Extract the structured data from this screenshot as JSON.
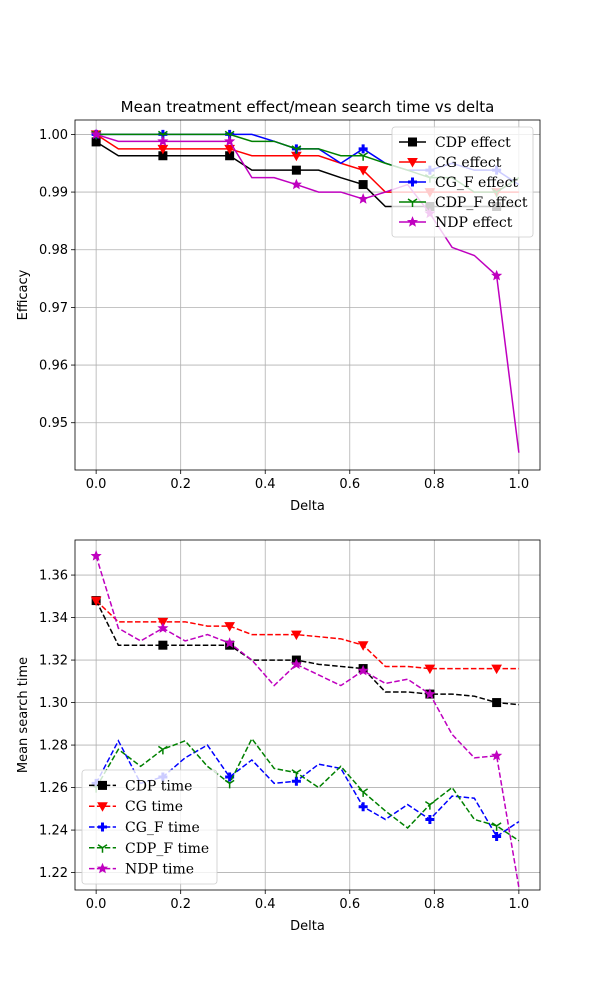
{
  "chart_data": [
    {
      "type": "line",
      "title": "Mean treatment effect/mean search time vs delta",
      "xlabel": "Delta",
      "ylabel": "Efficacy",
      "xlim": [
        -0.05,
        1.05
      ],
      "ylim": [
        0.9418,
        1.0025
      ],
      "xticks": [
        "0.0",
        "0.2",
        "0.4",
        "0.6",
        "0.8",
        "1.0"
      ],
      "yticks": [
        "0.95",
        "0.96",
        "0.97",
        "0.98",
        "0.99",
        "1.00"
      ],
      "grid": true,
      "legend_position": "top-right",
      "x": [
        0.0,
        0.0526,
        0.1053,
        0.1579,
        0.2105,
        0.2632,
        0.3158,
        0.3684,
        0.4211,
        0.4737,
        0.5263,
        0.5789,
        0.6316,
        0.6842,
        0.7368,
        0.7895,
        0.8421,
        0.8947,
        0.9474,
        1.0
      ],
      "series": [
        {
          "name": "CDP effect",
          "color": "#000000",
          "marker": "square",
          "dash": "solid",
          "marker_every": 3,
          "values": [
            0.9987,
            0.9963,
            0.9963,
            0.9963,
            0.9963,
            0.9963,
            0.9963,
            0.9938,
            0.9938,
            0.9938,
            0.9938,
            0.9925,
            0.9913,
            0.9875,
            0.9875,
            0.9875,
            0.9875,
            0.9875,
            0.9875,
            0.9875
          ]
        },
        {
          "name": "CG effect",
          "color": "#ff0000",
          "marker": "triangle-down",
          "dash": "solid",
          "marker_every": 3,
          "values": [
            1.0,
            0.9975,
            0.9975,
            0.9975,
            0.9975,
            0.9975,
            0.9975,
            0.9963,
            0.9963,
            0.9963,
            0.9963,
            0.995,
            0.9938,
            0.99,
            0.99,
            0.99,
            0.99,
            0.99,
            0.99,
            0.99
          ]
        },
        {
          "name": "CG_F effect",
          "color": "#0000ff",
          "marker": "plus",
          "dash": "solid",
          "marker_every": 3,
          "values": [
            1.0,
            1.0,
            1.0,
            1.0,
            1.0,
            1.0,
            1.0,
            1.0,
            0.9988,
            0.9975,
            0.9975,
            0.995,
            0.9975,
            0.995,
            0.9938,
            0.9938,
            0.995,
            0.9938,
            0.9938,
            0.9913
          ]
        },
        {
          "name": "CDP_F effect",
          "color": "#008000",
          "marker": "tri-down",
          "dash": "solid",
          "marker_every": 3,
          "values": [
            1.0,
            1.0,
            1.0,
            1.0,
            1.0,
            1.0,
            1.0,
            0.9988,
            0.9988,
            0.9975,
            0.9975,
            0.9963,
            0.9963,
            0.995,
            0.9938,
            0.9925,
            0.9925,
            0.99,
            0.99,
            0.9925
          ]
        },
        {
          "name": "NDP effect",
          "color": "#bf00bf",
          "marker": "star",
          "dash": "solid",
          "marker_every": 3,
          "values": [
            1.0,
            0.9988,
            0.9988,
            0.9988,
            0.9988,
            0.9988,
            0.9988,
            0.9925,
            0.9925,
            0.9913,
            0.99,
            0.99,
            0.9888,
            0.99,
            0.9913,
            0.9863,
            0.9804,
            0.979,
            0.9755,
            0.9448
          ]
        }
      ]
    },
    {
      "type": "line",
      "title": "",
      "xlabel": "Delta",
      "ylabel": "Mean search time",
      "xlim": [
        -0.05,
        1.05
      ],
      "ylim": [
        1.2118,
        1.3765
      ],
      "xticks": [
        "0.0",
        "0.2",
        "0.4",
        "0.6",
        "0.8",
        "1.0"
      ],
      "yticks": [
        "1.22",
        "1.24",
        "1.26",
        "1.28",
        "1.30",
        "1.32",
        "1.34",
        "1.36"
      ],
      "grid": true,
      "legend_position": "bottom-left",
      "x": [
        0.0,
        0.0526,
        0.1053,
        0.1579,
        0.2105,
        0.2632,
        0.3158,
        0.3684,
        0.4211,
        0.4737,
        0.5263,
        0.5789,
        0.6316,
        0.6842,
        0.7368,
        0.7895,
        0.8421,
        0.8947,
        0.9474,
        1.0
      ],
      "series": [
        {
          "name": "CDP time",
          "color": "#000000",
          "marker": "square",
          "dash": "dashed",
          "marker_every": 3,
          "values": [
            1.348,
            1.327,
            1.327,
            1.327,
            1.327,
            1.327,
            1.327,
            1.32,
            1.32,
            1.32,
            1.318,
            1.317,
            1.316,
            1.305,
            1.305,
            1.304,
            1.304,
            1.303,
            1.3,
            1.299
          ]
        },
        {
          "name": "CG time",
          "color": "#ff0000",
          "marker": "triangle-down",
          "dash": "dashed",
          "marker_every": 3,
          "values": [
            1.348,
            1.338,
            1.338,
            1.338,
            1.338,
            1.336,
            1.336,
            1.332,
            1.332,
            1.332,
            1.331,
            1.33,
            1.327,
            1.317,
            1.317,
            1.316,
            1.316,
            1.316,
            1.316,
            1.316
          ]
        },
        {
          "name": "CG_F time",
          "color": "#0000ff",
          "marker": "plus",
          "dash": "dashed",
          "marker_every": 3,
          "values": [
            1.262,
            1.282,
            1.262,
            1.265,
            1.274,
            1.28,
            1.265,
            1.273,
            1.262,
            1.263,
            1.271,
            1.269,
            1.251,
            1.245,
            1.252,
            1.245,
            1.256,
            1.255,
            1.237,
            1.244
          ]
        },
        {
          "name": "CDP_F time",
          "color": "#008000",
          "marker": "tri-down",
          "dash": "dashed",
          "marker_every": 3,
          "values": [
            1.26,
            1.278,
            1.27,
            1.278,
            1.282,
            1.27,
            1.262,
            1.283,
            1.269,
            1.267,
            1.26,
            1.27,
            1.258,
            1.249,
            1.241,
            1.252,
            1.26,
            1.245,
            1.242,
            1.235
          ]
        },
        {
          "name": "NDP time",
          "color": "#bf00bf",
          "marker": "star",
          "dash": "dashed",
          "marker_every": 3,
          "values": [
            1.369,
            1.335,
            1.329,
            1.335,
            1.329,
            1.332,
            1.328,
            1.32,
            1.308,
            1.318,
            1.313,
            1.308,
            1.315,
            1.309,
            1.311,
            1.304,
            1.285,
            1.274,
            1.275,
            1.213
          ]
        }
      ]
    }
  ]
}
